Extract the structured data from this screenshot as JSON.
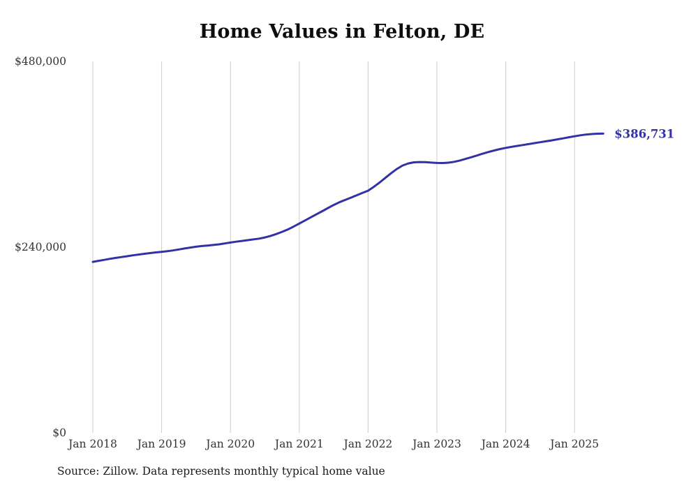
{
  "title": "Home Values in Felton, DE",
  "source_note": "Source: Zillow. Data represents monthly typical home value",
  "colors": {
    "line": "#3331a5",
    "grid": "#cccccc",
    "tick_text": "#333333",
    "title_text": "#0d0d0d",
    "end_label_text": "#3331a5"
  },
  "chart_data": {
    "type": "line",
    "title": "Home Values in Felton, DE",
    "xlabel": "",
    "ylabel": "",
    "ylim": [
      0,
      480000
    ],
    "grid": "vertical-only",
    "legend_position": "none",
    "y_ticks": [
      {
        "value": 0,
        "label": "$0"
      },
      {
        "value": 240000,
        "label": "$240,000"
      },
      {
        "value": 480000,
        "label": "$480,000"
      }
    ],
    "x_ticks": [
      "Jan 2018",
      "Jan 2019",
      "Jan 2020",
      "Jan 2021",
      "Jan 2022",
      "Jan 2023",
      "Jan 2024",
      "Jan 2025"
    ],
    "x_start": "2018-01",
    "x_interval": "monthly",
    "months_per_x_tick": 12,
    "series": [
      {
        "name": "Typical home value",
        "color": "#3331a5",
        "values": [
          221000,
          222300,
          223600,
          224900,
          226100,
          227200,
          228300,
          229400,
          230400,
          231400,
          232300,
          233200,
          234000,
          234800,
          235800,
          237000,
          238300,
          239500,
          240500,
          241400,
          242100,
          242800,
          243600,
          244800,
          246000,
          247000,
          248000,
          249000,
          250000,
          251000,
          252500,
          254500,
          257000,
          259800,
          262800,
          266500,
          270500,
          274500,
          278500,
          282500,
          286500,
          290500,
          294500,
          298000,
          301000,
          304000,
          307000,
          310000,
          313000,
          318000,
          323500,
          329500,
          335500,
          341000,
          345500,
          348200,
          349600,
          350000,
          349800,
          349300,
          348800,
          348700,
          349200,
          350300,
          352000,
          354000,
          356200,
          358500,
          360800,
          363000,
          365000,
          366800,
          368300,
          369600,
          370800,
          372000,
          373200,
          374400,
          375600,
          376800,
          378000,
          379300,
          380600,
          382000,
          383300,
          384500,
          385500,
          386200,
          386600,
          386731
        ]
      }
    ],
    "end_annotation": {
      "label": "$386,731",
      "value": 386731
    }
  }
}
